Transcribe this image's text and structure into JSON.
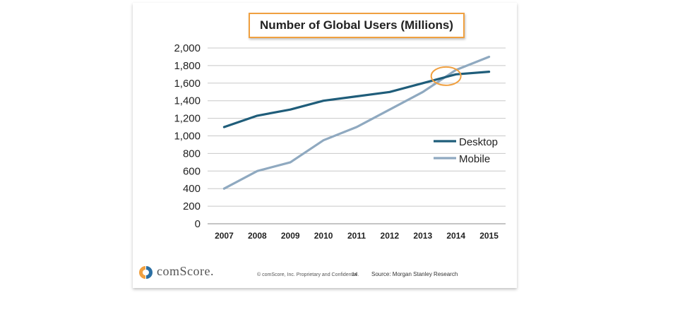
{
  "chart_data": {
    "type": "line",
    "title": "Number of Global Users (Millions)",
    "categories": [
      "2007",
      "2008",
      "2009",
      "2010",
      "2011",
      "2012",
      "2013",
      "2014",
      "2015"
    ],
    "series": [
      {
        "name": "Desktop",
        "color": "#1f5d7a",
        "values": [
          1100,
          1230,
          1300,
          1400,
          1450,
          1500,
          1600,
          1700,
          1730
        ]
      },
      {
        "name": "Mobile",
        "color": "#8fa9c0",
        "values": [
          400,
          600,
          700,
          950,
          1100,
          1300,
          1500,
          1750,
          1900
        ]
      }
    ],
    "ylim": [
      0,
      2000
    ],
    "yticks": [
      "0",
      "200",
      "400",
      "600",
      "800",
      "1,000",
      "1,200",
      "1,400",
      "1,600",
      "1,800",
      "2,000"
    ],
    "grid": true,
    "legend_position": "right",
    "annotation": {
      "type": "ellipse",
      "x": "2014",
      "y": 1680,
      "color": "#f0a040"
    }
  },
  "footer": {
    "logo_text": "comScore.",
    "copyright": "© comScore, Inc.  Proprietary and Confidential.",
    "page_number": "24",
    "source": "Source: Morgan Stanley Research"
  }
}
